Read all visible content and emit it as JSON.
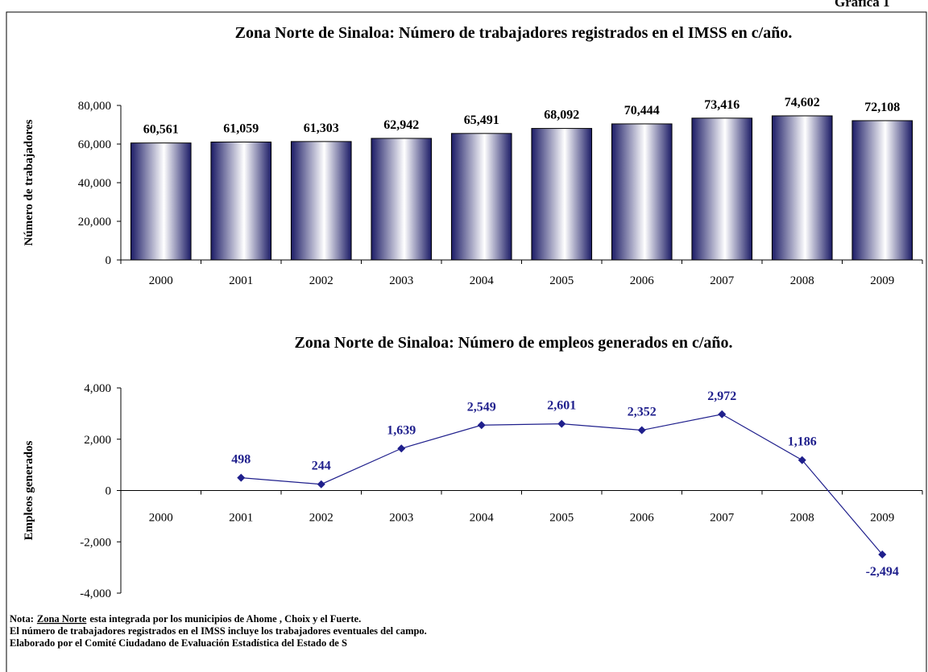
{
  "header": "Gráfica 1",
  "chart_data": [
    {
      "type": "bar",
      "title": "Zona Norte de Sinaloa: Número de trabajadores registrados en el IMSS en c/año.",
      "ylabel": "Número de trabajadores",
      "categories": [
        "2000",
        "2001",
        "2002",
        "2003",
        "2004",
        "2005",
        "2006",
        "2007",
        "2008",
        "2009"
      ],
      "values": [
        60561,
        61059,
        61303,
        62942,
        65491,
        68092,
        70444,
        73416,
        74602,
        72108
      ],
      "value_labels": [
        "60,561",
        "61,059",
        "61,303",
        "62,942",
        "65,491",
        "68,092",
        "70,444",
        "73,416",
        "74,602",
        "72,108"
      ],
      "color": "#1c1c66",
      "ylim": [
        0,
        80000
      ],
      "yticks": [
        0,
        {
          "value": 20000,
          "label": "20,000"
        },
        {
          "value": 40000,
          "label": "40,000"
        },
        {
          "value": 60000,
          "label": "60,000"
        },
        {
          "value": 80000,
          "label": "80,000"
        }
      ]
    },
    {
      "type": "line",
      "title": "Zona Norte de Sinaloa: Número de empleos generados en c/año.",
      "ylabel": "Empleos generados",
      "categories": [
        "2000",
        "2001",
        "2002",
        "2003",
        "2004",
        "2005",
        "2006",
        "2007",
        "2008",
        "2009"
      ],
      "values": [
        null,
        498,
        244,
        1639,
        2549,
        2601,
        2352,
        2972,
        1186,
        -2494
      ],
      "value_labels": [
        null,
        "498",
        "244",
        "1,639",
        "2,549",
        "2,601",
        "2,352",
        "2,972",
        "1,186",
        "-2,494"
      ],
      "color": "#1f1f8c",
      "ylim": [
        -4000,
        4000
      ],
      "yticks": [
        {
          "value": -4000,
          "label": "-4,000"
        },
        {
          "value": -2000,
          "label": "-2,000"
        },
        0,
        {
          "value": 2000,
          "label": "2,000"
        },
        {
          "value": 4000,
          "label": "4,000"
        }
      ]
    }
  ],
  "notes": {
    "label": "Nota:",
    "underlined": "Zona Norte",
    "line1": "esta integrada por los municipios de  Ahome , Choix y el Fuerte.",
    "line2": "El número de  trabajadores registrados en el IMSS incluye  los trabajadores eventuales del campo.",
    "line3": "Elaborado por el Comité Ciudadano de Evaluación Estadística del Estado de S"
  }
}
